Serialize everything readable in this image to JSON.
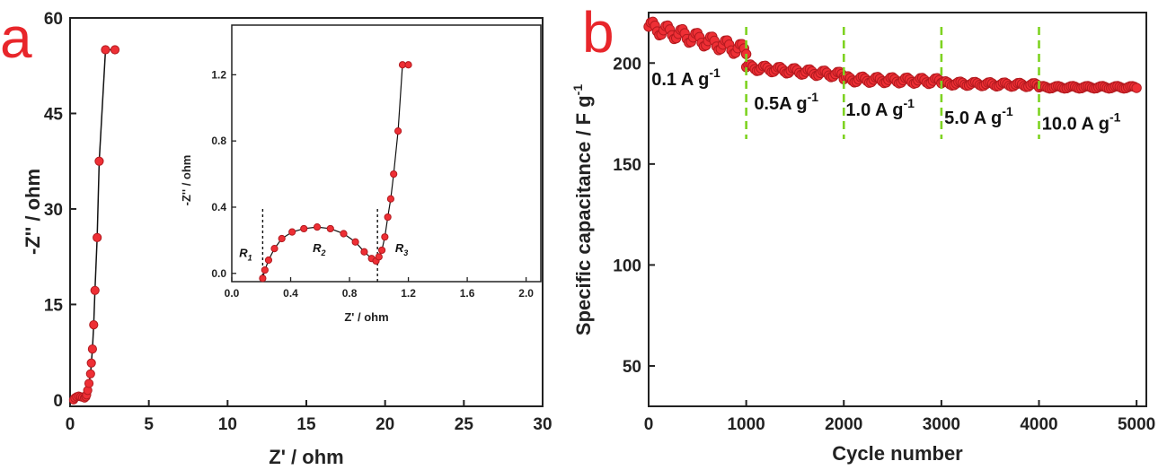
{
  "colors": {
    "marker": "#ee2f35",
    "marker_stroke": "#b21a1f",
    "line": "#111111",
    "panel_letter": "#e8262b",
    "divider": "#7ed321",
    "axis": "#222222"
  },
  "chart_data": [
    {
      "id": "a",
      "panel_label": "a",
      "type": "scatter",
      "xlabel": "Z' / ohm",
      "ylabel": "-Z'' / ohm",
      "xlim": [
        0,
        30
      ],
      "ylim": [
        -1,
        60
      ],
      "xticks": [
        0,
        5,
        10,
        15,
        20,
        25,
        30
      ],
      "yticks": [
        0,
        15,
        30,
        45,
        60
      ],
      "series": [
        {
          "x": [
            0.22,
            0.3,
            0.42,
            0.55,
            0.68,
            0.8,
            0.92,
            1.0,
            1.05,
            1.12,
            1.2,
            1.3,
            1.35,
            1.42,
            1.5,
            1.58,
            1.72,
            1.85,
            2.25,
            2.85
          ],
          "y": [
            0.0,
            0.3,
            0.5,
            0.6,
            0.5,
            0.4,
            0.3,
            0.5,
            0.8,
            1.5,
            2.6,
            4.1,
            5.8,
            8.0,
            11.8,
            17.2,
            25.5,
            37.5,
            55.0,
            55.0
          ],
          "note_points": "main Nyquist curve"
        }
      ],
      "inset": {
        "type": "scatter",
        "xlabel": "Z' / ohm",
        "ylabel": "-Z'' / ohm",
        "xlim": [
          0,
          2.1
        ],
        "ylim": [
          -0.05,
          1.5
        ],
        "xticks": [
          0.0,
          0.4,
          0.8,
          1.2,
          1.6,
          2.0
        ],
        "xtick_labels": [
          "0.0",
          "0.4",
          "0.8",
          "1.2",
          "1.6",
          "2.0"
        ],
        "yticks": [
          0.0,
          0.4,
          0.8,
          1.2
        ],
        "ytick_labels": [
          "0.0",
          "0.4",
          "0.8",
          "1.2"
        ],
        "series": [
          {
            "x": [
              0.21,
              0.225,
              0.25,
              0.29,
              0.34,
              0.41,
              0.49,
              0.58,
              0.67,
              0.76,
              0.84,
              0.9,
              0.95,
              0.98,
              1.0,
              1.02,
              1.04,
              1.06,
              1.08,
              1.1,
              1.13,
              1.16,
              1.2
            ],
            "y": [
              -0.03,
              0.02,
              0.08,
              0.15,
              0.21,
              0.25,
              0.27,
              0.28,
              0.27,
              0.24,
              0.19,
              0.13,
              0.09,
              0.075,
              0.1,
              0.14,
              0.22,
              0.34,
              0.45,
              0.6,
              0.86,
              1.26,
              1.26
            ]
          }
        ],
        "dividers": [
          0.21,
          0.99
        ],
        "annotations": [
          {
            "base": "R",
            "sub": "1",
            "x": 0.05,
            "y": 0.1
          },
          {
            "base": "R",
            "sub": "2",
            "x": 0.55,
            "y": 0.13
          },
          {
            "base": "R",
            "sub": "3",
            "x": 1.11,
            "y": 0.13
          }
        ]
      }
    },
    {
      "id": "b",
      "panel_label": "b",
      "type": "scatter",
      "xlabel": "Cycle number",
      "ylabel": "Specific capacitance / F g",
      "ylabel_sup": "-1",
      "xlim": [
        0,
        5100
      ],
      "ylim": [
        30,
        225
      ],
      "xticks": [
        0,
        1000,
        2000,
        3000,
        4000,
        5000
      ],
      "yticks": [
        50,
        100,
        150,
        200
      ],
      "segments": [
        {
          "x_start": 0,
          "x_end": 1000,
          "y_start": 218,
          "y_end": 206,
          "wave": 3
        },
        {
          "x_start": 1000,
          "x_end": 2000,
          "y_start": 198,
          "y_end": 194,
          "wave": 1.5
        },
        {
          "x_start": 2000,
          "x_end": 3000,
          "y_start": 192,
          "y_end": 191,
          "wave": 1.5
        },
        {
          "x_start": 3000,
          "x_end": 4000,
          "y_start": 190,
          "y_end": 189,
          "wave": 1
        },
        {
          "x_start": 4000,
          "x_end": 5000,
          "y_start": 188,
          "y_end": 188,
          "wave": 0.6
        }
      ],
      "dividers": [
        1000,
        2000,
        3000,
        4000
      ],
      "rate_labels": [
        {
          "text": "0.1 A g",
          "sup": "-1",
          "x": 30,
          "y": 189
        },
        {
          "text": "0.5A g",
          "sup": "-1",
          "x": 1080,
          "y": 177
        },
        {
          "text": "1.0 A g",
          "sup": "-1",
          "x": 2020,
          "y": 174
        },
        {
          "text": "5.0 A g",
          "sup": "-1",
          "x": 3030,
          "y": 170
        },
        {
          "text": "10.0 A g",
          "sup": "-1",
          "x": 4030,
          "y": 167
        }
      ]
    }
  ]
}
